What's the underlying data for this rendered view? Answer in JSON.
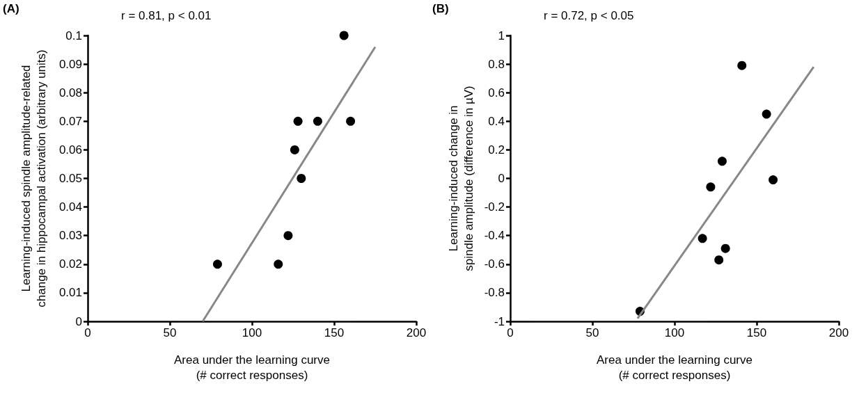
{
  "chart_data": [
    {
      "type": "scatter",
      "title": "(A)",
      "xlabel": "Area under the learning curve\n(# correct responses)",
      "ylabel": "Learning-induced spindle amplitude-related\nchange in hippocampal activation (arbitrary units)",
      "annotations": [
        "r = 0.81, p < 0.01"
      ],
      "grid": false,
      "xlim": [
        0,
        200
      ],
      "xticks": [
        0,
        50,
        100,
        150,
        200
      ],
      "ylim": [
        0,
        0.1
      ],
      "yticks": [
        0,
        0.01,
        0.02,
        0.03,
        0.04,
        0.05,
        0.06,
        0.07,
        0.08,
        0.09,
        0.1
      ],
      "series": [
        {
          "marker": "circle",
          "color": "#000000",
          "x": [
            79,
            116,
            122,
            126,
            128,
            130,
            140,
            156,
            160
          ],
          "values": [
            0.02,
            0.02,
            0.03,
            0.06,
            0.07,
            0.05,
            0.07,
            0.1,
            0.07
          ]
        },
        {
          "type": "line",
          "marker": "none",
          "color": "#888888",
          "x": [
            70,
            175
          ],
          "values": [
            0,
            0.096
          ]
        }
      ]
    },
    {
      "type": "scatter",
      "title": "(B)",
      "xlabel": "Area under the learning curve\n(# correct responses)",
      "ylabel": "Learning-induced change in\nspindle amplitude (difference in µV)",
      "annotations": [
        "r = 0.72, p < 0.05"
      ],
      "grid": false,
      "xlim": [
        0,
        200
      ],
      "xticks": [
        0,
        50,
        100,
        150,
        200
      ],
      "ylim": [
        -1,
        1
      ],
      "yticks": [
        -1,
        -0.8,
        -0.6,
        -0.4,
        -0.2,
        0,
        0.2,
        0.4,
        0.6,
        0.8,
        1
      ],
      "series": [
        {
          "marker": "circle",
          "color": "#000000",
          "x": [
            79,
            117,
            122,
            127,
            129,
            131,
            141,
            156,
            160
          ],
          "values": [
            -0.93,
            -0.42,
            -0.06,
            -0.57,
            0.12,
            -0.49,
            0.79,
            0.45,
            -0.01
          ]
        },
        {
          "type": "line",
          "marker": "none",
          "color": "#888888",
          "x": [
            77.5,
            184.7
          ],
          "values": [
            -0.98,
            0.78
          ]
        }
      ]
    }
  ]
}
